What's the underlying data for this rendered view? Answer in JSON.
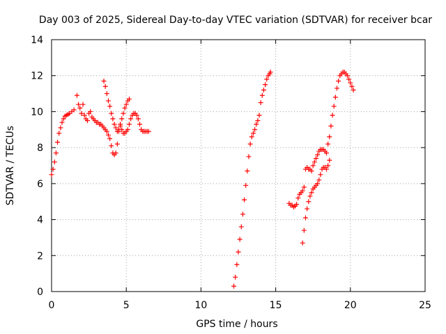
{
  "chart_data": {
    "type": "scatter",
    "title": "Day 003 of 2025, Sidereal Day-to-day VTEC variation (SDTVAR) for receiver bcar",
    "xlabel": "GPS time / hours",
    "ylabel": "SDTVAR / TECUs",
    "xlim": [
      0,
      25
    ],
    "ylim": [
      0,
      14
    ],
    "xticks": [
      0,
      5,
      10,
      15,
      20,
      25
    ],
    "yticks": [
      0,
      2,
      4,
      6,
      8,
      10,
      12,
      14
    ],
    "grid": true,
    "marker": "+",
    "color": "#ff0000",
    "series": [
      {
        "name": "SDTVAR",
        "segments": [
          {
            "x": [
              0.0,
              0.1,
              0.2,
              0.3,
              0.4,
              0.5,
              0.6,
              0.7,
              0.8,
              0.9,
              1.0,
              1.1,
              1.2,
              1.35,
              1.5
            ],
            "y": [
              6.5,
              6.8,
              7.2,
              7.7,
              8.3,
              8.8,
              9.1,
              9.4,
              9.6,
              9.75,
              9.8,
              9.85,
              9.9,
              10.0,
              10.1
            ]
          },
          {
            "x": [
              1.7,
              1.8,
              1.9,
              2.0,
              2.1,
              2.2,
              2.3,
              2.4,
              2.5,
              2.6,
              2.7,
              2.8,
              2.9,
              3.0,
              3.1,
              3.2,
              3.3,
              3.4,
              3.5,
              3.6,
              3.7,
              3.8,
              3.9,
              4.0,
              4.1,
              4.2,
              4.3,
              4.4,
              4.5,
              4.6,
              4.7,
              4.8,
              4.9,
              5.0,
              5.1,
              5.2,
              5.3,
              5.4,
              5.5,
              5.6,
              5.7,
              5.8,
              5.9,
              6.0,
              6.1,
              6.2,
              6.3,
              6.4,
              6.5
            ],
            "y": [
              10.9,
              10.4,
              10.2,
              9.9,
              10.4,
              9.8,
              9.6,
              9.5,
              9.9,
              10.0,
              9.7,
              9.6,
              9.5,
              9.4,
              9.4,
              9.3,
              9.3,
              9.2,
              9.1,
              9.0,
              8.9,
              8.7,
              8.5,
              8.1,
              7.7,
              7.6,
              7.7,
              8.2,
              8.9,
              9.2,
              9.0,
              8.8,
              8.8,
              8.9,
              9.0,
              9.3,
              9.6,
              9.8,
              9.9,
              9.9,
              9.8,
              9.6,
              9.3,
              9.0,
              8.9,
              8.9,
              8.9,
              8.9,
              8.9
            ]
          },
          {
            "x": [
              3.5,
              3.6,
              3.7,
              3.8,
              3.9,
              4.0,
              4.1,
              4.2,
              4.3,
              4.4,
              4.5,
              4.6,
              4.7,
              4.8,
              4.9,
              5.0,
              5.1,
              5.2
            ],
            "y": [
              11.7,
              11.4,
              11.0,
              10.6,
              10.3,
              9.9,
              9.6,
              9.3,
              9.1,
              8.9,
              9.0,
              9.3,
              9.6,
              9.9,
              10.2,
              10.4,
              10.6,
              10.7
            ]
          },
          {
            "x": [
              12.2,
              12.3,
              12.4,
              12.5,
              12.6,
              12.7,
              12.8,
              12.9,
              13.0,
              13.1,
              13.2,
              13.3,
              13.4,
              13.5,
              13.6,
              13.7,
              13.8,
              13.9,
              14.0,
              14.1,
              14.2,
              14.3,
              14.4,
              14.5,
              14.6,
              14.65
            ],
            "y": [
              0.3,
              0.8,
              1.5,
              2.2,
              2.9,
              3.6,
              4.3,
              5.1,
              5.9,
              6.7,
              7.5,
              8.2,
              8.6,
              8.8,
              9.0,
              9.3,
              9.5,
              9.8,
              10.5,
              10.9,
              11.2,
              11.5,
              11.8,
              12.0,
              12.1,
              12.2
            ]
          },
          {
            "x": [
              15.9,
              16.0,
              16.1,
              16.2,
              16.3,
              16.4,
              16.5,
              16.6,
              16.7,
              16.8,
              16.9,
              17.0,
              17.1,
              17.2,
              17.3,
              17.4,
              17.5,
              17.6,
              17.7,
              17.8,
              17.9,
              18.0,
              18.1,
              18.2,
              18.3,
              18.4,
              18.5,
              18.6,
              18.7,
              18.8,
              18.9,
              19.0,
              19.1,
              19.2,
              19.3,
              19.4,
              19.5,
              19.6,
              19.7,
              19.8,
              19.9,
              20.0,
              20.1,
              20.2
            ],
            "y": [
              4.9,
              4.8,
              4.8,
              4.7,
              4.75,
              4.85,
              5.2,
              5.4,
              5.5,
              5.6,
              5.8,
              6.8,
              6.9,
              6.8,
              6.8,
              6.7,
              7.0,
              7.2,
              7.4,
              7.6,
              7.8,
              7.9,
              7.9,
              7.9,
              7.8,
              7.7,
              8.2,
              8.6,
              9.2,
              9.8,
              10.3,
              10.8,
              11.3,
              11.7,
              12.0,
              12.1,
              12.2,
              12.2,
              12.1,
              12.0,
              11.8,
              11.6,
              11.4,
              11.2
            ]
          },
          {
            "x": [
              16.8,
              16.9,
              17.0,
              17.1,
              17.2,
              17.3,
              17.4,
              17.5,
              17.6,
              17.7,
              17.8,
              17.9,
              18.0,
              18.1,
              18.2,
              18.3,
              18.4,
              18.5,
              18.6
            ],
            "y": [
              2.7,
              3.4,
              4.1,
              4.6,
              5.0,
              5.3,
              5.5,
              5.7,
              5.8,
              5.9,
              6.0,
              6.2,
              6.5,
              6.8,
              6.9,
              6.9,
              6.8,
              7.0,
              7.3
            ]
          }
        ]
      }
    ]
  }
}
